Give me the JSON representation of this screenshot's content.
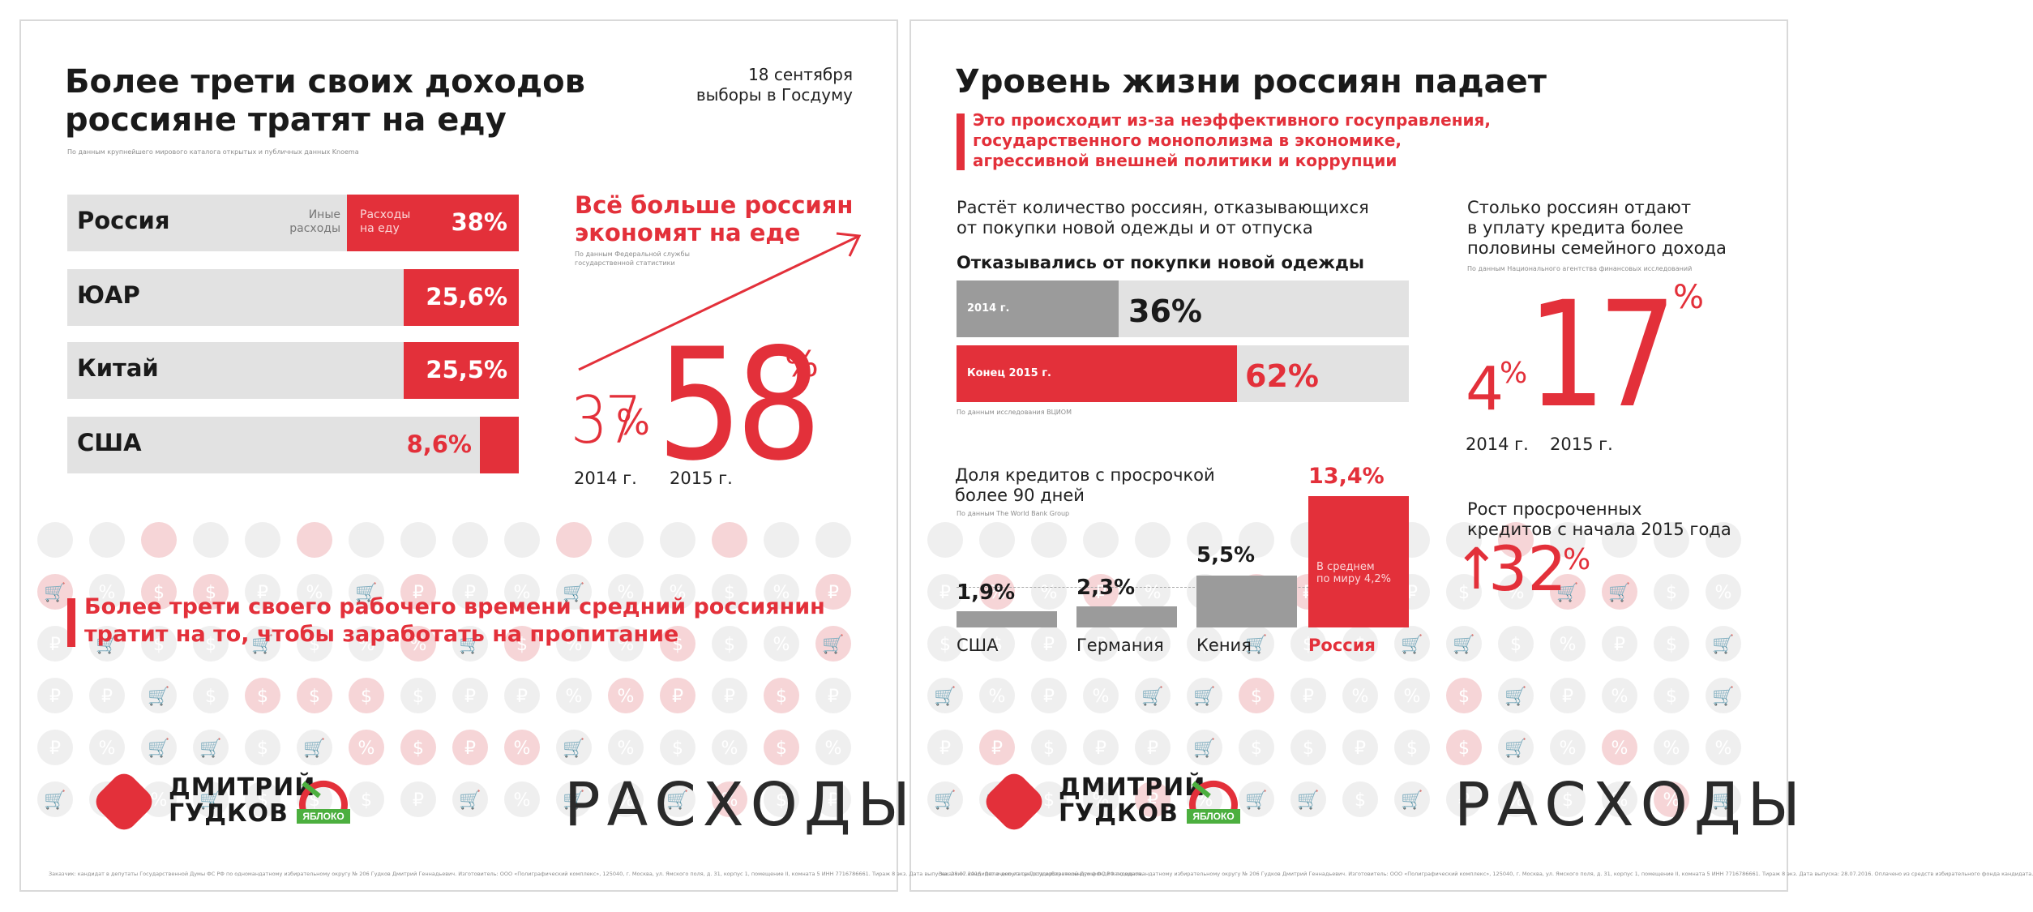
{
  "left": {
    "title": [
      "Более трети своих доходов",
      "россияне тратят на еду"
    ],
    "date_line1": "18 сентября",
    "date_line2": "выборы в Госдуму",
    "source1": "По данным крупнейшего мирового каталога открытых и публичных данных Knoema",
    "row_labels": {
      "other": [
        "Иные",
        "расходы"
      ],
      "food": [
        "Расходы",
        "на еду"
      ]
    },
    "rows": [
      {
        "country": "Россия",
        "value": "38%",
        "fraction": 0.38
      },
      {
        "country": "ЮАР",
        "value": "25,6%",
        "fraction": 0.256
      },
      {
        "country": "Китай",
        "value": "25,5%",
        "fraction": 0.255
      },
      {
        "country": "США",
        "value": "8,6%",
        "fraction": 0.086
      }
    ],
    "economy_title": [
      "Всё больше россиян",
      "экономят на еде"
    ],
    "source2": [
      "По данным Федеральной службы",
      "государственной статистики"
    ],
    "num_2014": "37",
    "num_2015": "58",
    "pct": "%",
    "year_2014": "2014 г.",
    "year_2015": "2015 г.",
    "quote": [
      "Более трети своего рабочего времени средний россиянин",
      "тратит на то, чтобы заработать на пропитание"
    ],
    "footer": "Заказчик: кандидат в депутаты Государственной Думы ФС РФ по одномандатному избирательному округу № 206 Гудков Дмитрий Геннадьевич. Изготовитель: ООО «Полиграфический комплекс», 125040, г. Москва, ул. Ямского поля, д. 31, корпус 1, помещение II, комната 5 ИНН 7716786661. Тираж 8 экз. Дата выпуска: 28.07.2016. Оплачено из средств избирательного фонда кандидата."
  },
  "right": {
    "title": "Уровень жизни россиян падает",
    "subtitle": [
      "Это происходит из-за неэффективного госуправления,",
      "государственного монополизма в экономике,",
      "агрессивной внешней политики и коррупции"
    ],
    "clothes_intro": [
      "Растёт количество россиян, отказывающихся",
      "от покупки новой одежды и от отпуска"
    ],
    "clothes_title": "Отказывались от покупки новой одежды",
    "bars": [
      {
        "label": "2014 г.",
        "value": "36%",
        "fraction": 0.36
      },
      {
        "label": "Конец 2015 г.",
        "value": "62%",
        "fraction": 0.62
      }
    ],
    "source_vciom": "По данным исследования ВЦИОМ",
    "credit_intro": [
      "Столько россиян отдают",
      "в уплату кредита более",
      "половины семейного дохода"
    ],
    "source_nafi": "По данным Национального агентства финансовых исследований",
    "credit_2014": "4",
    "credit_2015": "17",
    "pct": "%",
    "year_2014": "2014 г.",
    "year_2015": "2015 г.",
    "overdue_title": [
      "Доля кредитов с просрочкой",
      "более 90 дней"
    ],
    "source_wb": "По данным The World Bank Group",
    "overdue": [
      {
        "country": "США",
        "value": "1,9%",
        "num": 1.9
      },
      {
        "country": "Германия",
        "value": "2,3%",
        "num": 2.3
      },
      {
        "country": "Кения",
        "value": "5,5%",
        "num": 5.5
      },
      {
        "country": "Россия",
        "value": "13,4%",
        "num": 13.4
      }
    ],
    "world_avg": [
      "В среднем",
      "по миру 4,2%"
    ],
    "growth_title": [
      "Рост просроченных",
      "кредитов с начала 2015 года"
    ],
    "growth_arrow": "↑",
    "growth_value": "32",
    "footer": "Заказчик: кандидат в депутаты Государственной Думы ФС РФ по одномандатному избирательному округу № 206 Гудков Дмитрий Геннадьевич. Изготовитель: ООО «Полиграфический комплекс», 125040, г. Москва, ул. Ямского поля, д. 31, корпус 1, помещение II, комната 5 ИНН 7716786661. Тираж 8 экз. Дата выпуска: 28.07.2016. Оплачено из средств избирательного фонда кандидата."
  },
  "brand": {
    "name": [
      "ДМИТРИЙ",
      "ГУДКОВ"
    ],
    "party": "ЯБЛОКО",
    "section": "РАСХОДЫ"
  },
  "colors": {
    "accent": "#e3303a",
    "gray_bar": "#e2e2e2",
    "dark_gray": "#9b9b9b"
  },
  "pattern_icons": [
    "ruble-icon",
    "percent-icon",
    "cart-icon",
    "dollar-icon"
  ]
}
